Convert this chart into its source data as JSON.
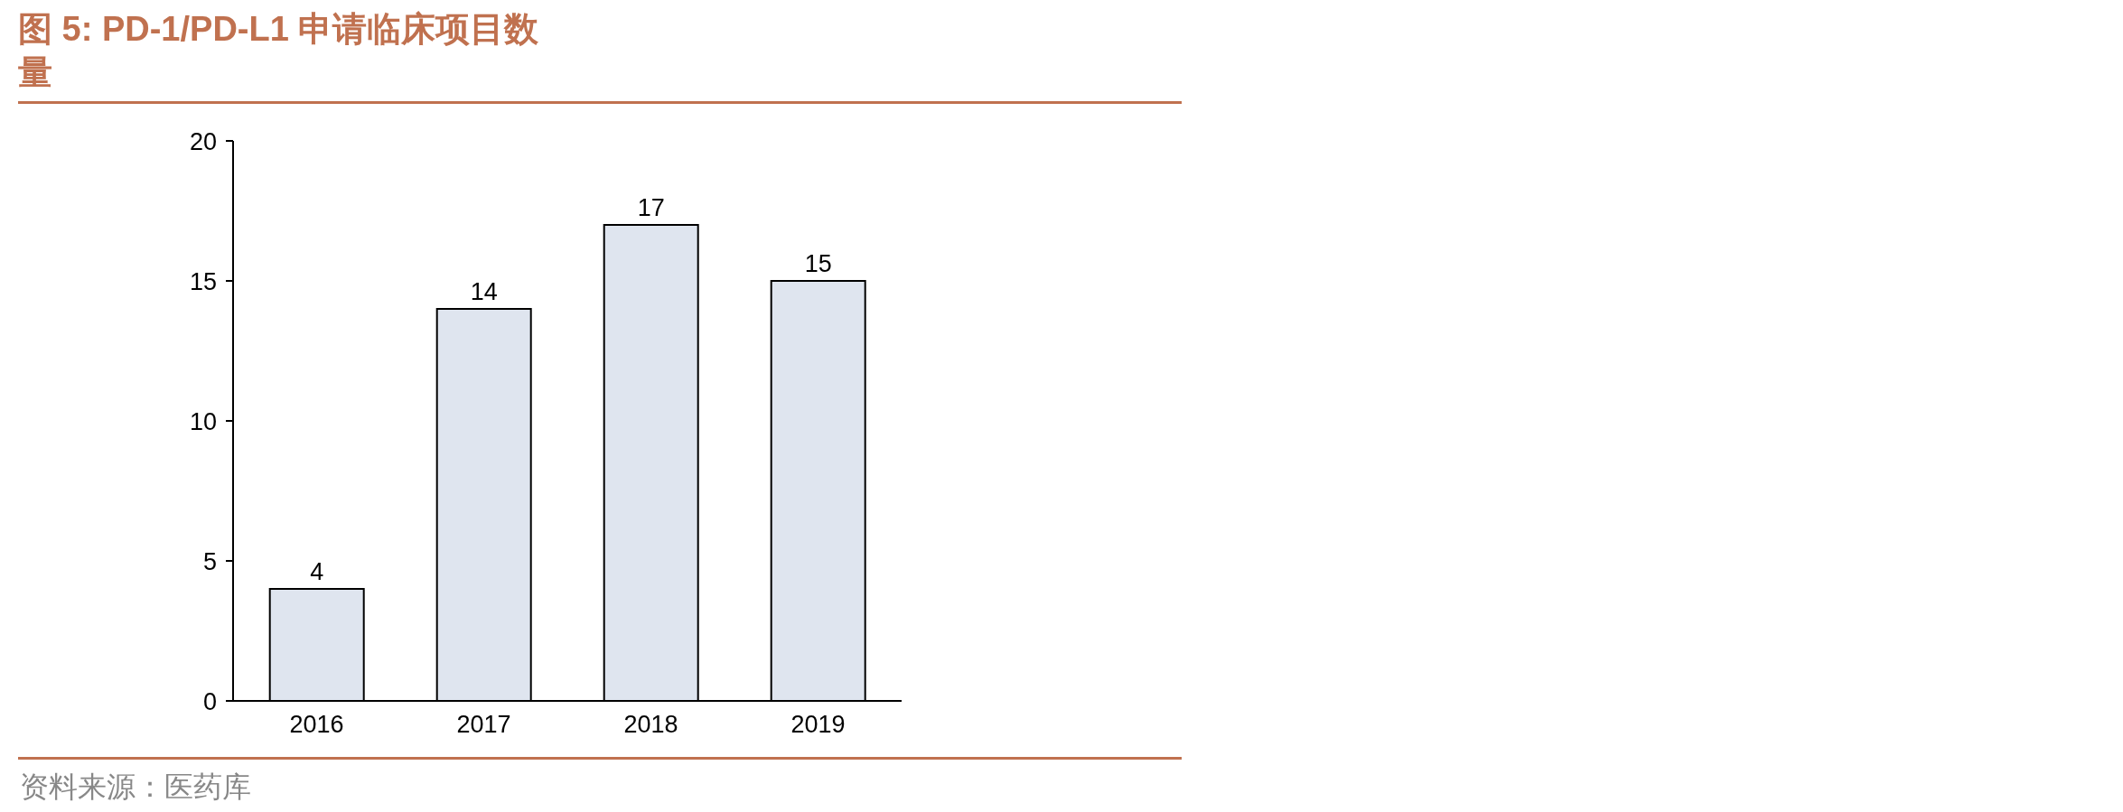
{
  "chart_data": {
    "type": "bar",
    "title": "图 5: PD-1/PD-L1 申请临床项目数量",
    "categories": [
      "2016",
      "2017",
      "2018",
      "2019"
    ],
    "values": [
      4,
      14,
      17,
      15
    ],
    "color": "#dfe5ef",
    "ylim": [
      0,
      20
    ],
    "yticks": [
      0,
      5,
      10,
      15,
      20
    ],
    "grid": false,
    "legend": false,
    "data_labels": true,
    "annotations": [
      "资料来源：医药库"
    ]
  }
}
